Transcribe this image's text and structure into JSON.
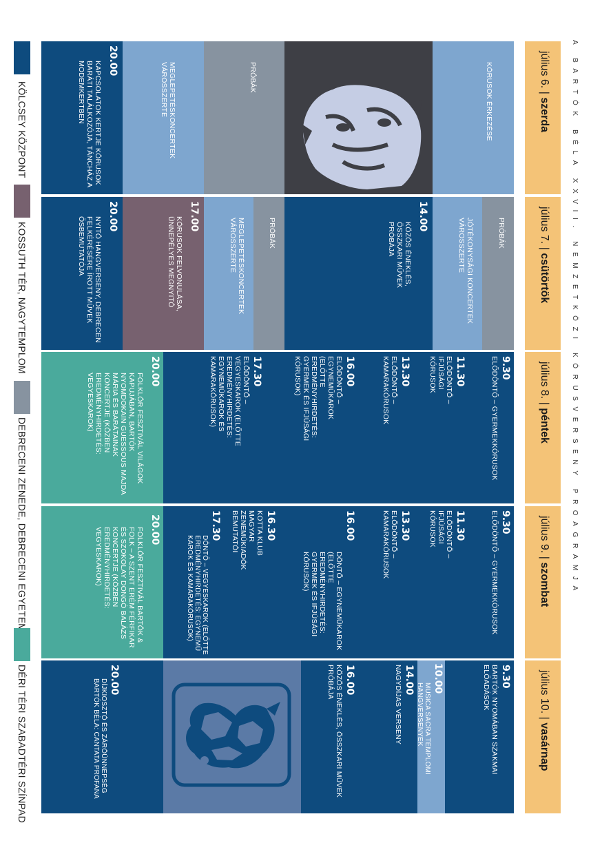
{
  "page_title": "A BARTÓK BÉLA XXVII. NEMZETKÖZI KÓRUSVERSENY PROAGRAMJA",
  "days": [
    {
      "date": "július 6.",
      "sep": "|",
      "weekday": "szerda"
    },
    {
      "date": "július 7.",
      "sep": "|",
      "weekday": "csütörtök"
    },
    {
      "date": "július 8.",
      "sep": "|",
      "weekday": "péntek"
    },
    {
      "date": "július 9.",
      "sep": "|",
      "weekday": "szombat"
    },
    {
      "date": "július 10.",
      "sep": "|",
      "weekday": "vasárnap"
    }
  ],
  "day1": {
    "e1": "KÓRUSOK ÉRKEZÉSE",
    "e2": "PRÓBÁK",
    "e3": "MEGLEPETÉSKONCERTEK VÁROSSZERTE",
    "e4_time": "20.00",
    "e4": "KAPCSOLATOK KERTJE KÓRUSOK BARÁTI TALÁLKOZÓJA, TÁNCHÁZ A MODEMKERTBEN"
  },
  "day2": {
    "e1": "PRÓBÁK",
    "e2": "JÓTÉKONYSÁGI KONCERTEK VÁROSSZERTE",
    "e3_time": "14.00",
    "e3": "KÖZÖS ÉNEKLÉS, ÖSSZKARI MŰVEK PRÓBÁJA",
    "e4": "PRÓBÁK",
    "e5": "MEGLEPETÉSKONCERTEK VÁROSSZERTE",
    "e6_time": "17.00",
    "e6": "KÓRUSOK FELVONULÁSA, ÜNNEPÉLYES MEGNYITÓ",
    "e7_time": "20.00",
    "e7": "NYITÓ HANGVERSENY, DEBRECEN FELKÉRÉSÉRE ÍROTT MŰVEK ŐSBEMUTATÓJA"
  },
  "day3": {
    "e1_time": "9.30",
    "e1": "ELŐDÖNTŐ – GYERMEKKÓRUSOK",
    "e2_time": "11.30",
    "e2": "ELŐDÖNTŐ – IFJÚSÁGI KÓRUSOK",
    "e3_time": "13.30",
    "e3": "ELŐDÖNTŐ – KAMARAKÓRUSOK",
    "e4_time": "16.00",
    "e4": "ELŐDÖNTŐ – EGYNEMŰKAROK (ELŐTTE EREDMÉNYHIRDETÉS: GYERMEK ÉS IFJÚSÁGI KÓRUSOK)",
    "e5_time": "17.30",
    "e5": "ELŐDÖNTŐ – VEGYESKAROK (ELŐTTE EREDMÉNYHIRDETÉS: EGYNEMŰKAROK ÉS KAMARAKÓRUSOK)",
    "e6_time": "20.00",
    "e6": "FOLKLÓR FESZTIVÁL VILÁGOK KAPUJÁBAN, BARTÓK NYOMDOKAIN GUESSOUS MAJDA MÁRIA ÉS BARÁTAINAK KONCERTJE (KÖZBEN EREDMÉNYHIRDETÉS: VEGYESKAROK)"
  },
  "day4": {
    "e1_time": "9.30",
    "e1": "ELŐDÖNTŐ – GYERMEKKÓRUSOK",
    "e2_time": "11.30",
    "e2": "ELŐDÖNTŐ – IFJÚSÁGI KÓRUSOK",
    "e3_time": "13.30",
    "e3": "ELŐDÖNTŐ – KAMARAKÓRUSOK",
    "e4_time": "16.00",
    "e4": "DÖNTŐ – EGYNEMŰKAROK (ELŐTTE EREDMÉNYHIRDETÉS: GYERMEK ÉS IFJÚSÁGI KÓRUSOK)",
    "e5_time": "16.30",
    "e5": "KOTTA KLUB MAGYAR ZENEMŰKIADÓK BEMUTATÓI",
    "e6_time": "17.30",
    "e6": "DÖNTŐ – VEGYESKAROK (ELŐTTE EREDMÉNYHIRDETÉS: EGYNEMŰ KAROK ÉS KAMARAKÓRUSOK)",
    "e7_time": "20.00",
    "e7": "FOLKLÓR FESZTIVÁL BARTÓK & FOLK – A SZENT ERÉM FÉRFIKAR ÉS SZOKOLAY DONGÓ BALÁZS KONCERTJE (KÖZBEN EREDMÉNYHIRDETÉS: VEGYESKAROK)"
  },
  "day5": {
    "e1_time": "9.30",
    "e1": "BARTÓK NYOMÁBAN SZAKMAI ELŐADÁSOK",
    "e2_time": "10.00",
    "e2": "MUSICA SACRA TEMPLOMI HANGVERSENYEK",
    "e3_time": "14.00",
    "e3": "NAGYDÍJAS VERSENY",
    "e4_time": "16.00",
    "e4": "KÖZÖS ÉNEKLÉS, ÖSSZKARI MŰVEK PRÓBÁJA",
    "e5_time": "20.00",
    "e5": "DÍJKIOSZTÓ ÉS ZÁRÓÜNNEPSÉG BARTÓK BÉLA: CANTATA PROFANA"
  },
  "legend": [
    {
      "label": "KÖLCSEY KÖZPONT",
      "color": "#0e4b7e"
    },
    {
      "label": "KOSSUTH TÉR, NAGYTEMPLOM",
      "color": "#77616f"
    },
    {
      "label": "DEBRECENI ZENEDE, DEBRECENI EGYETEM",
      "color": "#8793a0"
    },
    {
      "label": "DÉRI TÉRI SZABADTÉRI SZÍNPAD",
      "color": "#4aaa9c"
    }
  ],
  "images": {
    "portrait": "bartok-portrait",
    "bird": "folk-bird-motif"
  }
}
